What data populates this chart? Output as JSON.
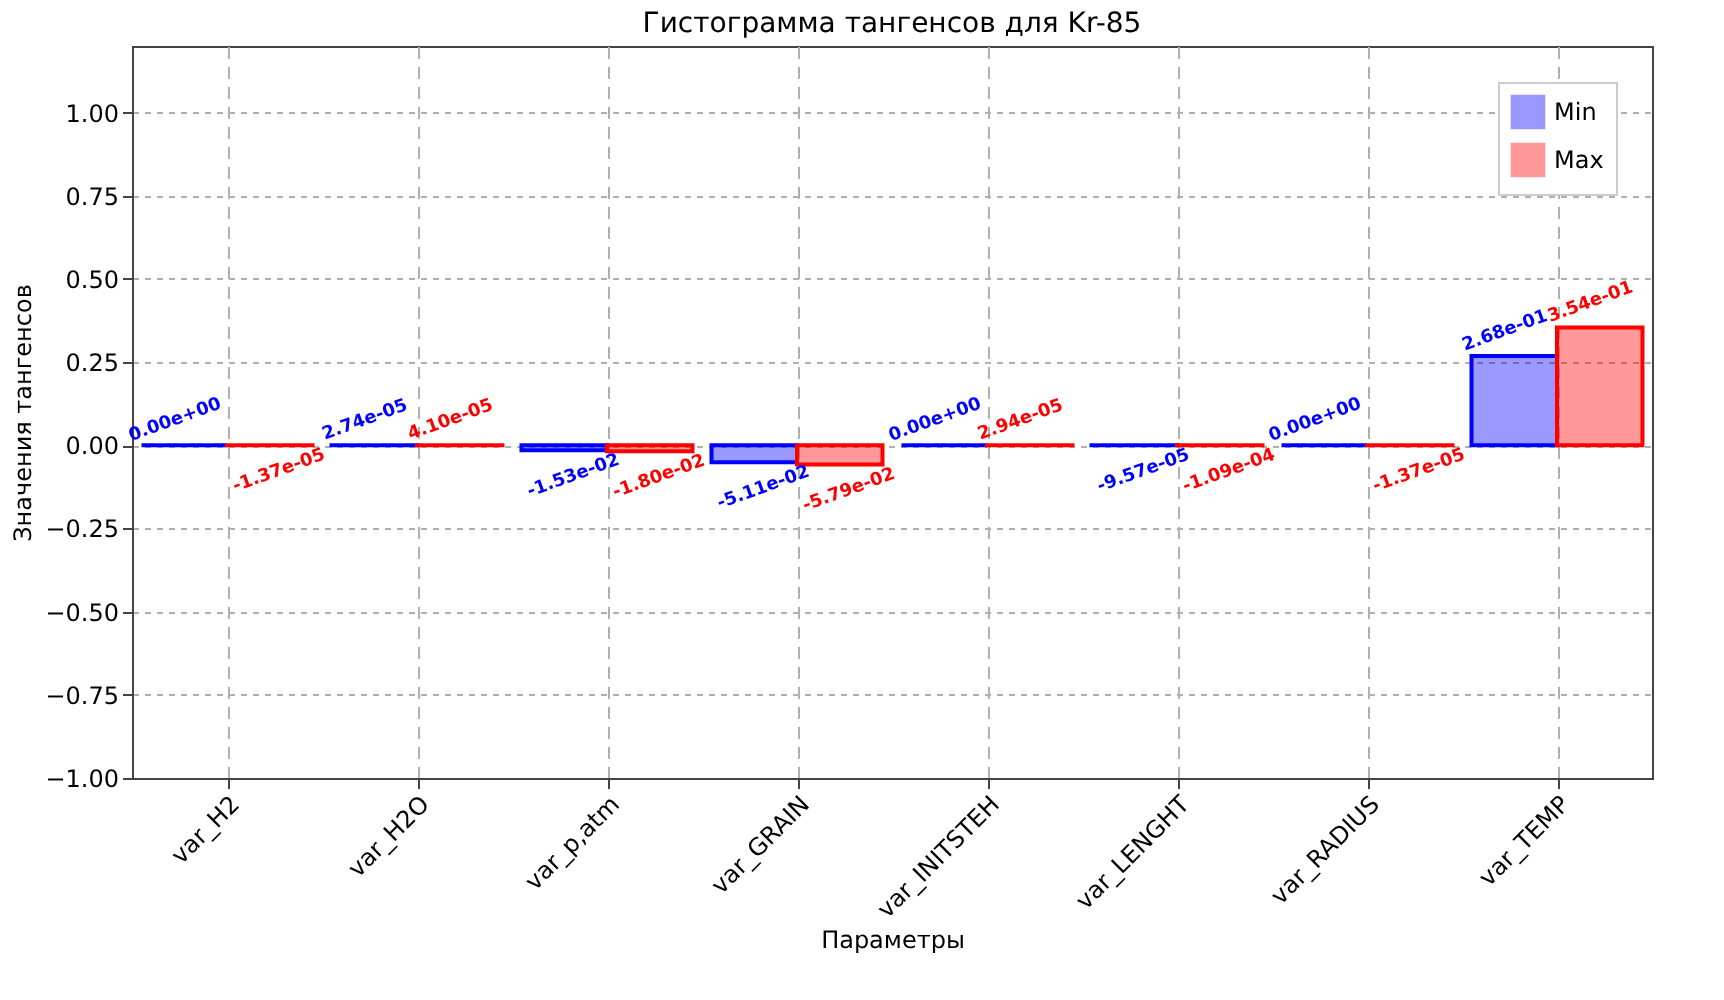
{
  "chart_data": {
    "type": "bar",
    "title": "Гистограмма тангенсов для Kr-85",
    "xlabel": "Параметры",
    "ylabel": "Значения тангенсов",
    "categories": [
      "var_H2",
      "var_H2O",
      "var_p,atm",
      "var_GRAIN",
      "var_INITSTEH",
      "var_LENGHT",
      "var_RADIUS",
      "var_TEMP"
    ],
    "series": [
      {
        "name": "Min",
        "color": "#0000ff",
        "values": [
          0.0,
          2.74e-05,
          -0.0153,
          -0.0511,
          0.0,
          -9.57e-05,
          0.0,
          0.268
        ],
        "value_labels": [
          "0.00e+00",
          "2.74e-05",
          "-1.53e-02",
          "-5.11e-02",
          "0.00e+00",
          "-9.57e-05",
          "0.00e+00",
          "2.68e-01"
        ]
      },
      {
        "name": "Max",
        "color": "#ff0000",
        "values": [
          -1.37e-05,
          4.1e-05,
          -0.018,
          -0.0579,
          2.94e-05,
          -0.000109,
          -1.37e-05,
          0.354
        ],
        "value_labels": [
          "-1.37e-05",
          "4.10e-05",
          "-1.80e-02",
          "-5.79e-02",
          "2.94e-05",
          "-1.09e-04",
          "-1.37e-05",
          "3.54e-01"
        ]
      }
    ],
    "ylim": [
      -1.0,
      1.2
    ],
    "yticks": [
      {
        "value": -1.0,
        "label": "−1.00"
      },
      {
        "value": -0.75,
        "label": "−0.75"
      },
      {
        "value": -0.5,
        "label": "−0.50"
      },
      {
        "value": -0.25,
        "label": "−0.25"
      },
      {
        "value": 0,
        "label": "0.00"
      },
      {
        "value": 0.25,
        "label": "0.25"
      },
      {
        "value": 0.5,
        "label": "0.50"
      },
      {
        "value": 0.75,
        "label": "0.75"
      },
      {
        "value": 1.0,
        "label": "1.00"
      }
    ],
    "grid": true,
    "legend": "top right"
  }
}
